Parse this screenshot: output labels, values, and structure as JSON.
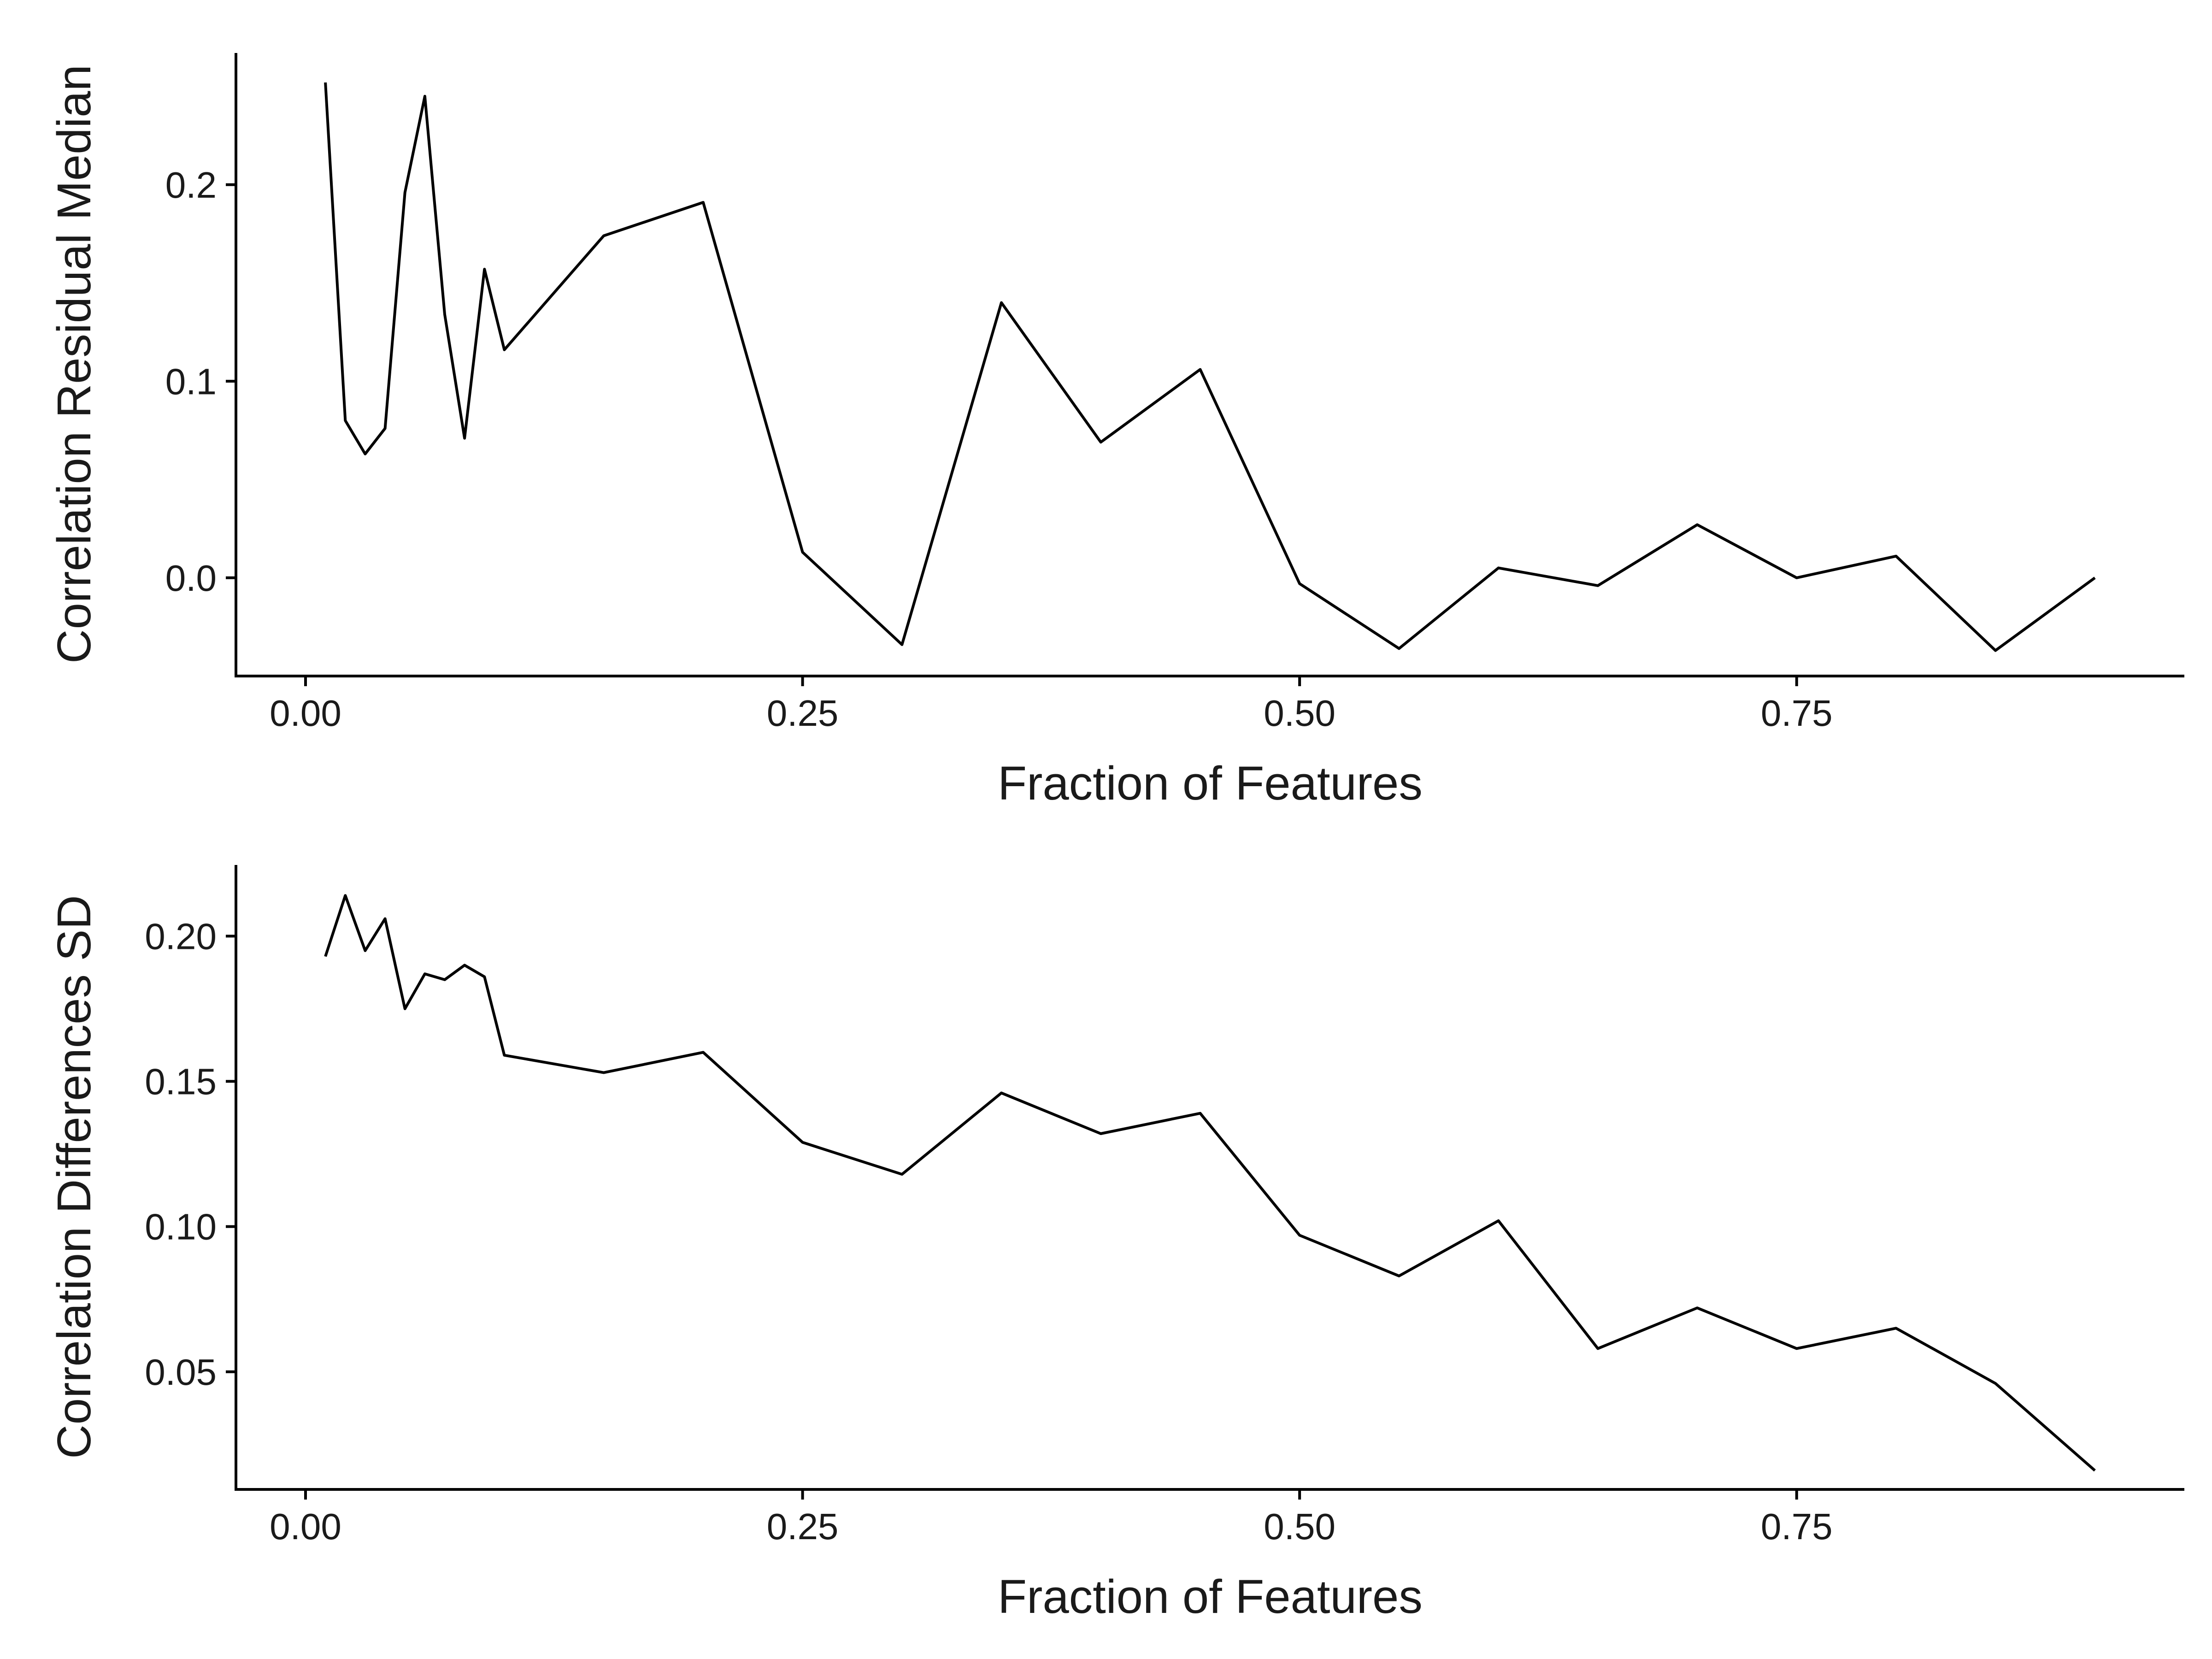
{
  "chart_data": [
    {
      "type": "line",
      "title": "",
      "xlabel": "Fraction of Features",
      "ylabel": "Correlation Residual Median",
      "xlim": [
        -0.035,
        0.945
      ],
      "ylim": [
        -0.05,
        0.267
      ],
      "x_ticks": [
        0.0,
        0.25,
        0.5,
        0.75
      ],
      "x_tick_labels": [
        "0.00",
        "0.25",
        "0.50",
        "0.75"
      ],
      "y_ticks": [
        0.0,
        0.1,
        0.2
      ],
      "y_tick_labels": [
        "0.0",
        "0.1",
        "0.2"
      ],
      "grid": false,
      "legend": "none",
      "line_color": "#000000",
      "series": [
        {
          "x": [
            0.01,
            0.02,
            0.03,
            0.04,
            0.05,
            0.06,
            0.07,
            0.08,
            0.09,
            0.1,
            0.15,
            0.2,
            0.25,
            0.3,
            0.35,
            0.4,
            0.45,
            0.5,
            0.55,
            0.6,
            0.65,
            0.7,
            0.75,
            0.8,
            0.85,
            0.9
          ],
          "y": [
            0.252,
            0.08,
            0.063,
            0.076,
            0.196,
            0.245,
            0.134,
            0.071,
            0.157,
            0.116,
            0.174,
            0.191,
            0.013,
            -0.034,
            0.14,
            0.069,
            0.106,
            -0.003,
            -0.036,
            0.005,
            -0.004,
            0.027,
            0.0,
            0.011,
            -0.037,
            0.0
          ]
        }
      ]
    },
    {
      "type": "line",
      "title": "",
      "xlabel": "Fraction of Features",
      "ylabel": "Correlation Differences SD",
      "xlim": [
        -0.035,
        0.945
      ],
      "ylim": [
        0.0095,
        0.2245
      ],
      "x_ticks": [
        0.0,
        0.25,
        0.5,
        0.75
      ],
      "x_tick_labels": [
        "0.00",
        "0.25",
        "0.50",
        "0.75"
      ],
      "y_ticks": [
        0.05,
        0.1,
        0.15,
        0.2
      ],
      "y_tick_labels": [
        "0.05",
        "0.10",
        "0.15",
        "0.20"
      ],
      "grid": false,
      "legend": "none",
      "line_color": "#000000",
      "series": [
        {
          "x": [
            0.01,
            0.02,
            0.03,
            0.04,
            0.05,
            0.06,
            0.07,
            0.08,
            0.09,
            0.1,
            0.15,
            0.2,
            0.25,
            0.3,
            0.35,
            0.4,
            0.45,
            0.5,
            0.55,
            0.6,
            0.65,
            0.7,
            0.75,
            0.8,
            0.85,
            0.9
          ],
          "y": [
            0.193,
            0.214,
            0.195,
            0.206,
            0.175,
            0.187,
            0.185,
            0.19,
            0.186,
            0.159,
            0.153,
            0.16,
            0.129,
            0.118,
            0.146,
            0.132,
            0.139,
            0.097,
            0.083,
            0.102,
            0.058,
            0.072,
            0.058,
            0.065,
            0.046,
            0.016
          ]
        }
      ]
    }
  ]
}
